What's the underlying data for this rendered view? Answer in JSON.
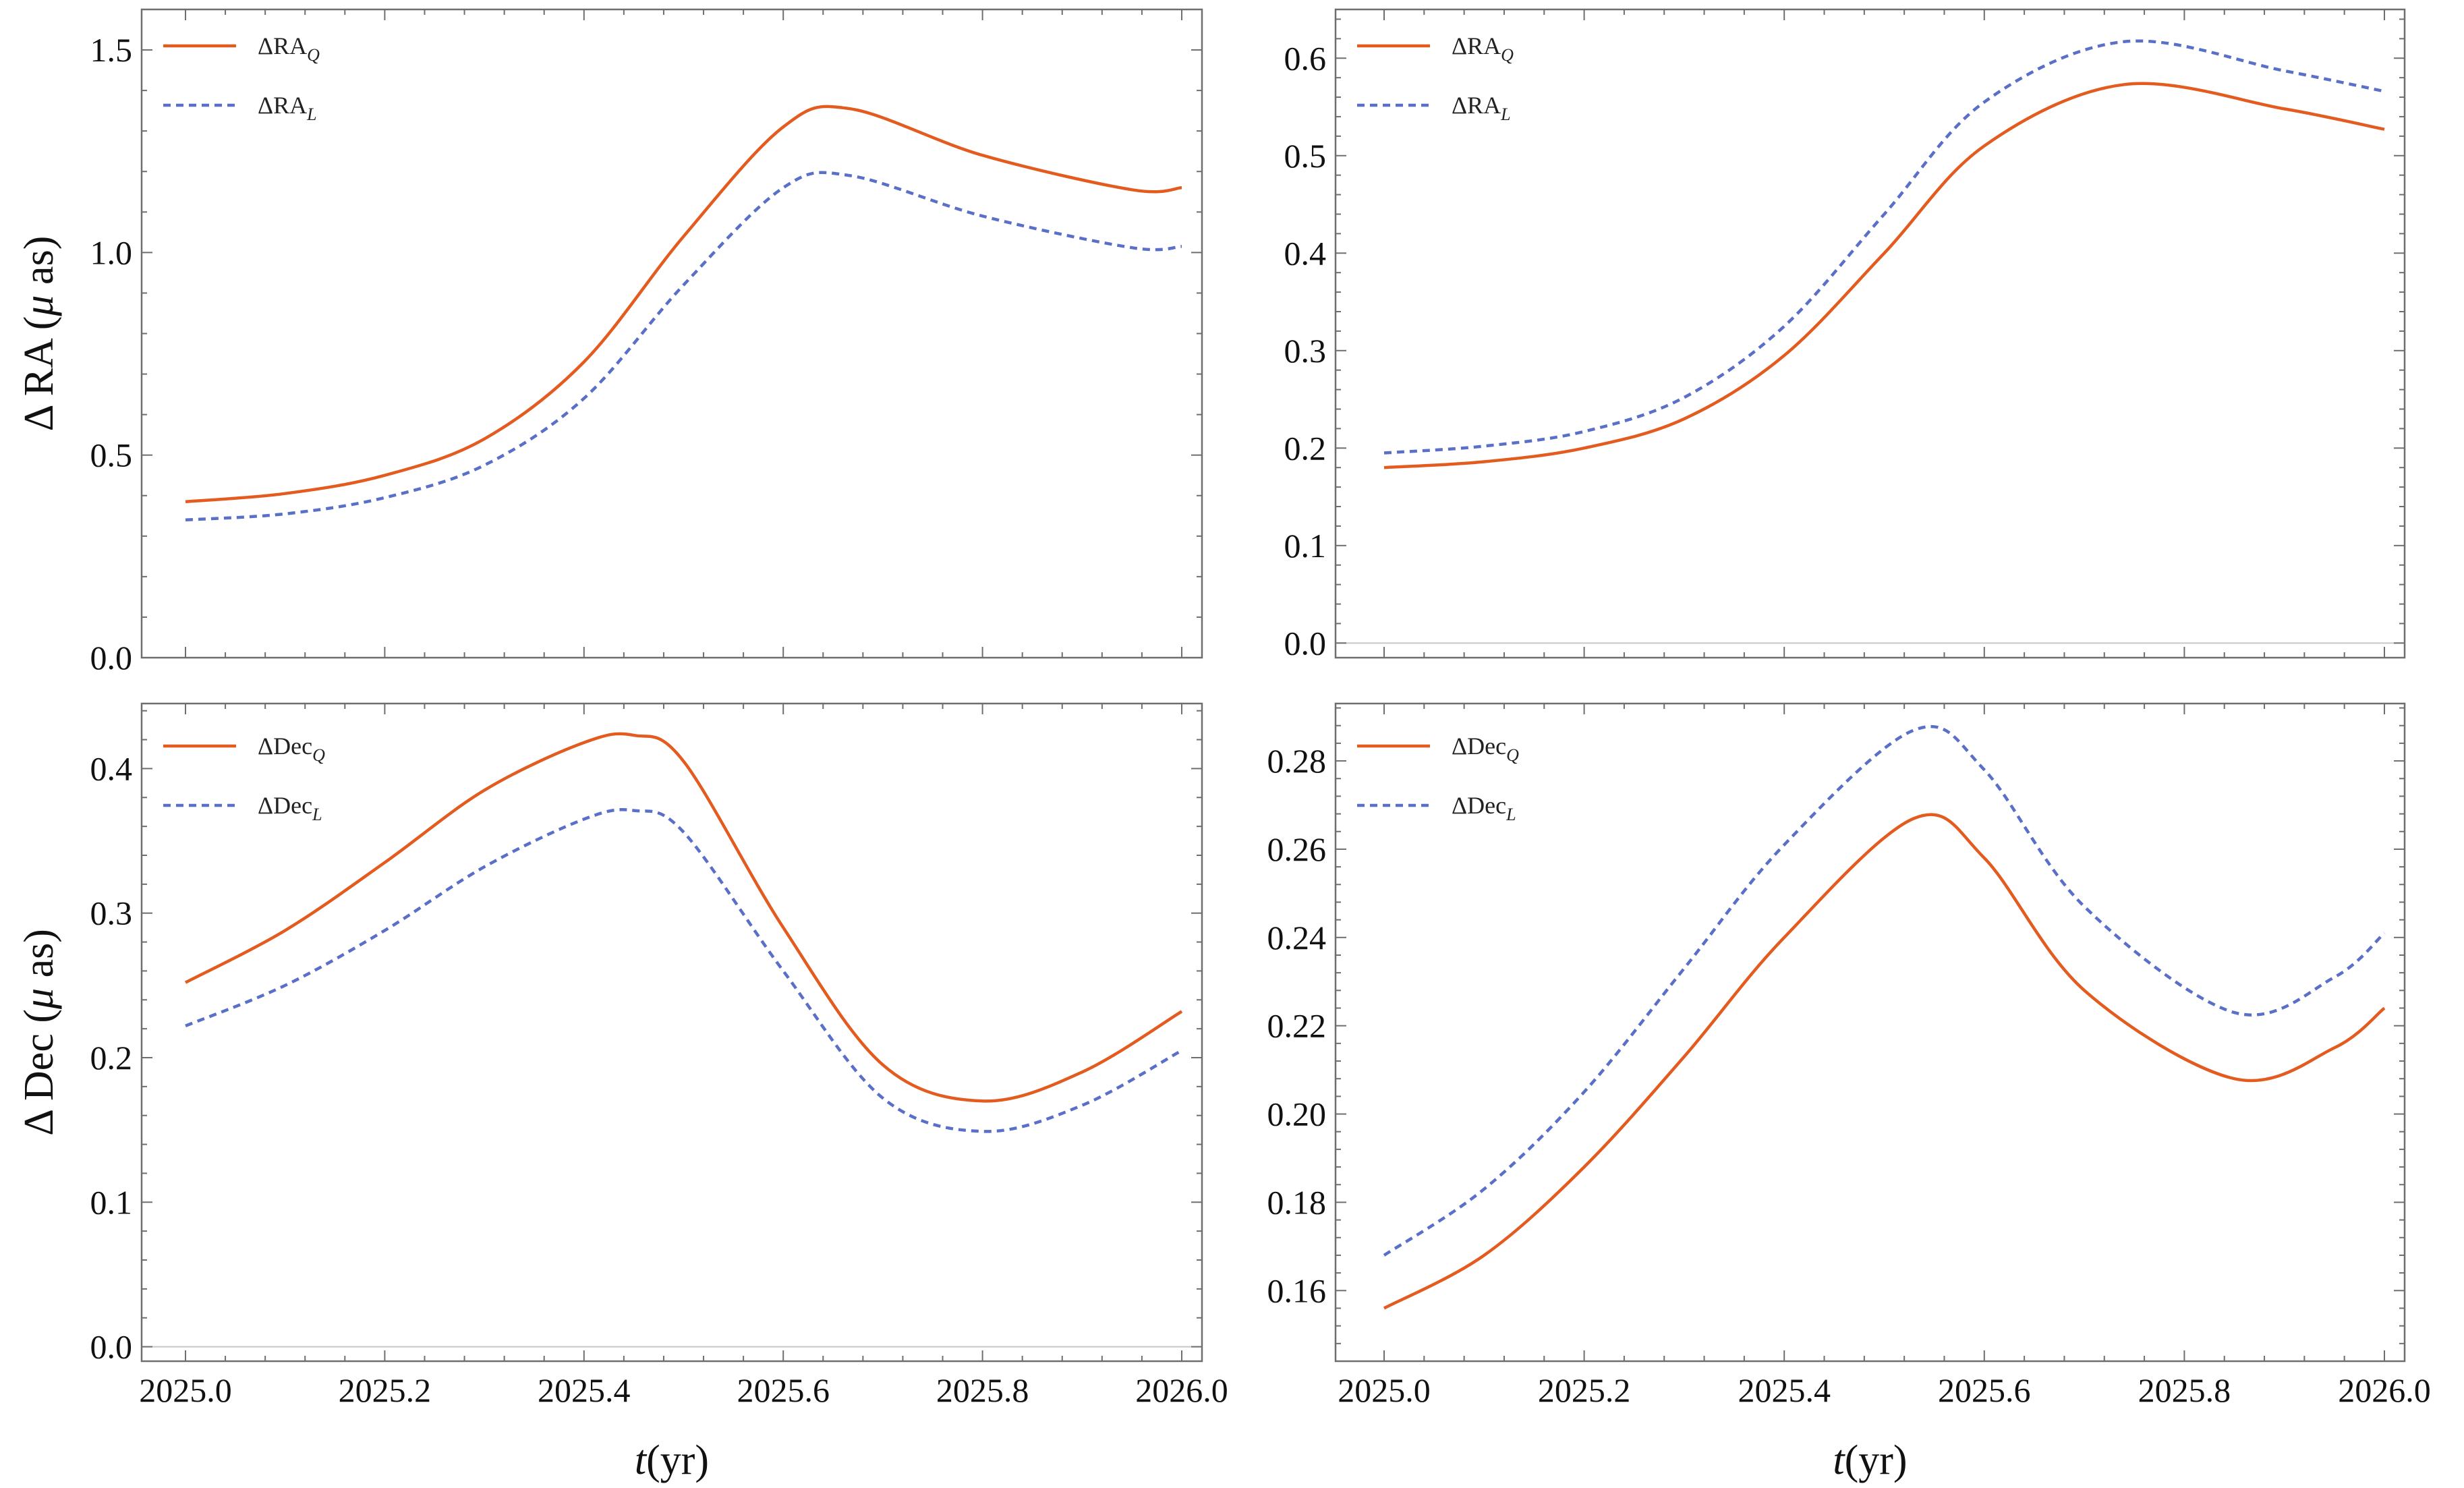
{
  "colors": {
    "orange": "#e35b1f",
    "blue": "#5a6fc8",
    "frame": "#6e6e6e"
  },
  "chart_data": [
    {
      "id": "ra_a",
      "type": "line",
      "ylabel": {
        "pre": "Δ RA (",
        "mu": "μ",
        "post": " as)"
      },
      "ylim": [
        0,
        1.6
      ],
      "yticks": [
        "0.0",
        "0.5",
        "1.0",
        "1.5"
      ],
      "ytick_values": [
        0,
        0.5,
        1.0,
        1.5
      ],
      "xlim": [
        2025.0,
        2026.0
      ],
      "xticks": [],
      "xtick_values": [
        2025.0,
        2025.2,
        2025.4,
        2025.6,
        2025.8,
        2026.0
      ],
      "x": [
        2025.0,
        2025.1,
        2025.2,
        2025.3,
        2025.4,
        2025.5,
        2025.6,
        2025.667,
        2025.8,
        2025.95,
        2026.0
      ],
      "series": [
        {
          "name": "ΔRA",
          "sub": "Q",
          "style": "solid",
          "values": [
            0.385,
            0.405,
            0.45,
            0.54,
            0.73,
            1.04,
            1.31,
            1.355,
            1.24,
            1.155,
            1.16
          ]
        },
        {
          "name": "ΔRA",
          "sub": "L",
          "style": "dashed",
          "values": [
            0.34,
            0.355,
            0.395,
            0.475,
            0.64,
            0.92,
            1.16,
            1.19,
            1.09,
            1.012,
            1.015
          ]
        }
      ]
    },
    {
      "id": "ra_b",
      "type": "line",
      "ylabel": null,
      "ylim": [
        -0.015,
        0.65
      ],
      "yticks": [
        "0.0",
        "0.1",
        "0.2",
        "0.3",
        "0.4",
        "0.5",
        "0.6"
      ],
      "ytick_values": [
        0,
        0.1,
        0.2,
        0.3,
        0.4,
        0.5,
        0.6
      ],
      "xlim": [
        2025.0,
        2026.0
      ],
      "xticks": [],
      "xtick_values": [
        2025.0,
        2025.2,
        2025.4,
        2025.6,
        2025.8,
        2026.0
      ],
      "x": [
        2025.0,
        2025.1,
        2025.2,
        2025.3,
        2025.4,
        2025.5,
        2025.6,
        2025.74,
        2025.9,
        2026.0
      ],
      "series": [
        {
          "name": "ΔRA",
          "sub": "Q",
          "style": "solid",
          "values": [
            0.18,
            0.186,
            0.2,
            0.23,
            0.295,
            0.4,
            0.51,
            0.573,
            0.548,
            0.527
          ]
        },
        {
          "name": "ΔRA",
          "sub": "L",
          "style": "dashed",
          "values": [
            0.195,
            0.202,
            0.217,
            0.252,
            0.325,
            0.44,
            0.555,
            0.617,
            0.587,
            0.566
          ]
        }
      ]
    },
    {
      "id": "dec_a",
      "type": "line",
      "ylabel": {
        "pre": "Δ Dec (",
        "mu": "μ",
        "post": " as)"
      },
      "ylim": [
        -0.01,
        0.445
      ],
      "yticks": [
        "0.0",
        "0.1",
        "0.2",
        "0.3",
        "0.4"
      ],
      "ytick_values": [
        0,
        0.1,
        0.2,
        0.3,
        0.4
      ],
      "xlim": [
        2025.0,
        2026.0
      ],
      "xticks": [
        "2025.0",
        "2025.2",
        "2025.4",
        "2025.6",
        "2025.8",
        "2026.0"
      ],
      "xtick_values": [
        2025.0,
        2025.2,
        2025.4,
        2025.6,
        2025.8,
        2026.0
      ],
      "xlabel": {
        "var": "t",
        "unit": "(yr)"
      },
      "x": [
        2025.0,
        2025.1,
        2025.2,
        2025.3,
        2025.4,
        2025.45,
        2025.5,
        2025.6,
        2025.7,
        2025.8,
        2025.9,
        2026.0
      ],
      "series": [
        {
          "name": "ΔDec",
          "sub": "Q",
          "style": "solid",
          "values": [
            0.252,
            0.288,
            0.335,
            0.385,
            0.418,
            0.423,
            0.405,
            0.29,
            0.195,
            0.17,
            0.19,
            0.232
          ]
        },
        {
          "name": "ΔDec",
          "sub": "L",
          "style": "dashed",
          "values": [
            0.222,
            0.25,
            0.288,
            0.332,
            0.365,
            0.371,
            0.356,
            0.26,
            0.172,
            0.149,
            0.167,
            0.205
          ]
        }
      ]
    },
    {
      "id": "dec_b",
      "type": "line",
      "ylabel": null,
      "ylim": [
        0.144,
        0.293
      ],
      "yticks": [
        "0.16",
        "0.18",
        "0.20",
        "0.22",
        "0.24",
        "0.26",
        "0.28"
      ],
      "ytick_values": [
        0.16,
        0.18,
        0.2,
        0.22,
        0.24,
        0.26,
        0.28
      ],
      "xlim": [
        2025.0,
        2026.0
      ],
      "xticks": [
        "2025.0",
        "2025.2",
        "2025.4",
        "2025.6",
        "2025.8",
        "2026.0"
      ],
      "xtick_values": [
        2025.0,
        2025.2,
        2025.4,
        2025.6,
        2025.8,
        2026.0
      ],
      "xlabel": {
        "var": "t",
        "unit": "(yr)"
      },
      "x": [
        2025.0,
        2025.1,
        2025.2,
        2025.3,
        2025.4,
        2025.53,
        2025.6,
        2025.7,
        2025.85,
        2025.95,
        2026.0
      ],
      "series": [
        {
          "name": "ΔDec",
          "sub": "Q",
          "style": "solid",
          "values": [
            0.156,
            0.168,
            0.188,
            0.213,
            0.24,
            0.267,
            0.258,
            0.228,
            0.208,
            0.215,
            0.224
          ]
        },
        {
          "name": "ΔDec",
          "sub": "L",
          "style": "dashed",
          "values": [
            0.168,
            0.183,
            0.205,
            0.233,
            0.261,
            0.287,
            0.278,
            0.247,
            0.223,
            0.231,
            0.241
          ]
        }
      ]
    }
  ]
}
